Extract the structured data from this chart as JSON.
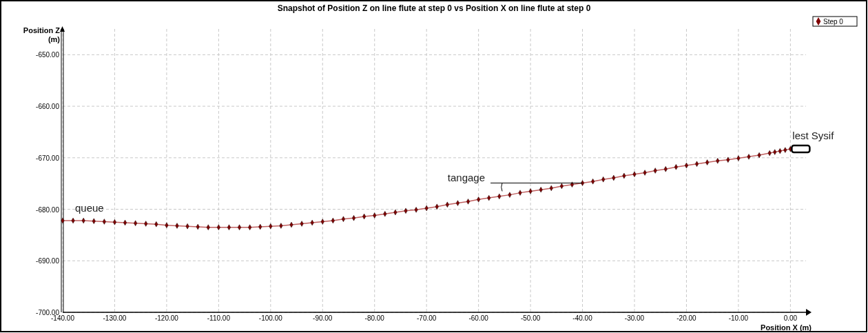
{
  "chart_data": {
    "type": "line",
    "title": "Snapshot of Position Z on line flute at step 0 vs  Position X on line flute at step 0",
    "xlabel": "Position X (m)",
    "ylabel": "Position Z (m)",
    "x": [
      -140,
      -138,
      -136,
      -134,
      -132,
      -130,
      -128,
      -126,
      -124,
      -122,
      -120,
      -118,
      -116,
      -114,
      -112,
      -110,
      -108,
      -106,
      -104,
      -102,
      -100,
      -98,
      -96,
      -94,
      -92,
      -90,
      -88,
      -86,
      -84,
      -82,
      -80,
      -78,
      -76,
      -74,
      -72,
      -70,
      -68,
      -66,
      -64,
      -62,
      -60,
      -58,
      -56,
      -54,
      -52,
      -50,
      -48,
      -46,
      -44,
      -42,
      -40,
      -38,
      -36,
      -34,
      -32,
      -30,
      -28,
      -26,
      -24,
      -22,
      -20,
      -18,
      -16,
      -14,
      -12,
      -10,
      -8,
      -6,
      -4,
      -3,
      -2,
      -1,
      0
    ],
    "series": [
      {
        "name": "Step 0",
        "color": "#800000",
        "values": [
          -682.2,
          -682.2,
          -682.2,
          -682.3,
          -682.4,
          -682.5,
          -682.6,
          -682.7,
          -682.8,
          -682.9,
          -683.1,
          -683.2,
          -683.3,
          -683.4,
          -683.5,
          -683.5,
          -683.5,
          -683.5,
          -683.5,
          -683.4,
          -683.3,
          -683.2,
          -683.0,
          -682.8,
          -682.6,
          -682.4,
          -682.2,
          -681.9,
          -681.7,
          -681.4,
          -681.2,
          -680.9,
          -680.6,
          -680.3,
          -680.1,
          -679.8,
          -679.5,
          -679.1,
          -678.8,
          -678.5,
          -678.1,
          -677.8,
          -677.5,
          -677.2,
          -676.8,
          -676.5,
          -676.2,
          -675.9,
          -675.5,
          -675.2,
          -674.9,
          -674.6,
          -674.2,
          -673.9,
          -673.5,
          -673.2,
          -672.9,
          -672.5,
          -672.2,
          -671.8,
          -671.5,
          -671.2,
          -670.9,
          -670.6,
          -670.4,
          -670.1,
          -669.8,
          -669.5,
          -669.1,
          -668.9,
          -668.7,
          -668.5,
          -668.3
        ]
      }
    ],
    "xlim": [
      -140,
      3
    ],
    "ylim": [
      -700,
      -645
    ],
    "xticks": [
      {
        "value": -140,
        "label": "-140.00"
      },
      {
        "value": -130,
        "label": "-130.00"
      },
      {
        "value": -120,
        "label": "-120.00"
      },
      {
        "value": -110,
        "label": "-110.00"
      },
      {
        "value": -100,
        "label": "-100.00"
      },
      {
        "value": -90,
        "label": "-90.00"
      },
      {
        "value": -80,
        "label": "-80.00"
      },
      {
        "value": -70,
        "label": "-70.00"
      },
      {
        "value": -60,
        "label": "-60.00"
      },
      {
        "value": -50,
        "label": "-50.00"
      },
      {
        "value": -40,
        "label": "-40.00"
      },
      {
        "value": -30,
        "label": "-30.00"
      },
      {
        "value": -20,
        "label": "-20.00"
      },
      {
        "value": -10,
        "label": "-10.00"
      },
      {
        "value": 0,
        "label": "0.00"
      }
    ],
    "yticks": [
      {
        "value": -700,
        "label": "-700.00"
      },
      {
        "value": -690,
        "label": "-690.00"
      },
      {
        "value": -680,
        "label": "-680.00"
      },
      {
        "value": -670,
        "label": "-670.00"
      },
      {
        "value": -660,
        "label": "-660.00"
      },
      {
        "value": -650,
        "label": "-650.00"
      }
    ],
    "annotations": [
      {
        "text": "queue",
        "x": -140,
        "y": -682.2
      },
      {
        "text": "tangage",
        "x": -40,
        "y": -674.9
      },
      {
        "text": "lest Sysif",
        "x": 0,
        "y": -668.3
      }
    ],
    "grid": true,
    "legend": "top right",
    "marker": "diamond",
    "line_style": "solid"
  }
}
